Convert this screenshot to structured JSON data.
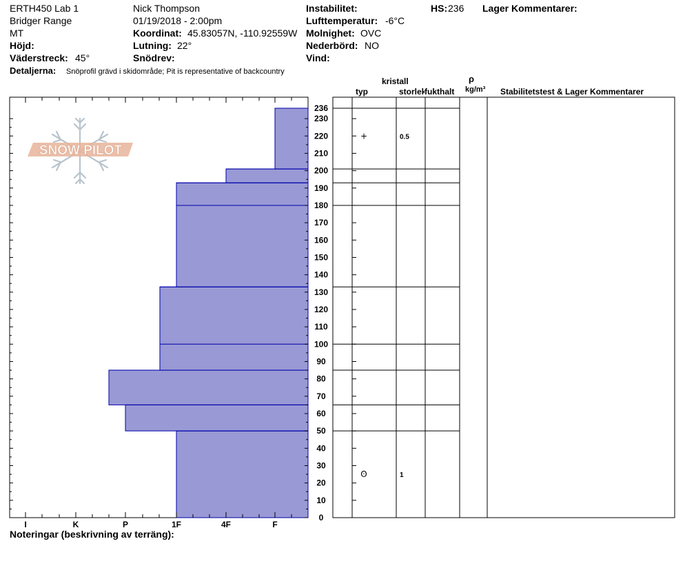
{
  "header": {
    "title": "ERTH450 Lab 1",
    "range": "Bridger Range",
    "state": "MT",
    "observer": "Nick Thompson",
    "datetime": "01/19/2018 - 2:00pm",
    "coord_label": "Koordinat:",
    "coord_value": "45.83057N, -110.92559W",
    "slope_label": "Lutning:",
    "slope_value": "22°",
    "snowdrift_label": "Snödrev:",
    "snowdrift_value": "",
    "elevation_label": "Höjd:",
    "elevation_value": "",
    "aspect_label": "Väderstreck:",
    "aspect_value": "45°",
    "instability_label": "Instabilitet:",
    "instability_value": "",
    "airtemp_label": "Lufttemperatur:",
    "airtemp_value": "-6°C",
    "sky_label": "Molnighet:",
    "sky_value": "OVC",
    "precip_label": "Nederbörd:",
    "precip_value": "NO",
    "wind_label": "Vind:",
    "wind_value": "",
    "hs_label": "HS:",
    "hs_value": "236",
    "layer_comments_label": "Lager Kommentarer:",
    "details_label": "Detaljerna:",
    "details_value": "Snöprofil grävd i skidområde;  Pit is representative of backcountry"
  },
  "logo": {
    "text": "SNOW PILOT"
  },
  "table_headers": {
    "crystal": "kristall",
    "type": "typ",
    "size": "storlek",
    "moisture": "fukthalt",
    "rho": "ρ",
    "density_unit": "kg/m³",
    "stability": "Stabilitetstest & Lager Kommentarer"
  },
  "footer": {
    "notes_label": "Noteringar (beskrivning av terräng):"
  },
  "chart_data": {
    "type": "bar",
    "orientation": "horizontal",
    "hardness_scale": [
      "I",
      "K",
      "P",
      "1F",
      "4F",
      "F"
    ],
    "hardness_scale_direction": "right-to-left",
    "y_axis_label": "",
    "ylim": [
      0,
      236
    ],
    "y_ticks": [
      0,
      10,
      20,
      30,
      40,
      50,
      60,
      70,
      80,
      90,
      100,
      110,
      120,
      130,
      140,
      150,
      160,
      170,
      180,
      190,
      200,
      210,
      220,
      230,
      236
    ],
    "fill_color": "#9999d6",
    "line_color": "#0000aa",
    "layers": [
      {
        "bottom": 0,
        "top": 50,
        "hardness": "1F"
      },
      {
        "bottom": 50,
        "top": 65,
        "hardness": "P"
      },
      {
        "bottom": 65,
        "top": 85,
        "hardness": "P+"
      },
      {
        "bottom": 85,
        "top": 133,
        "hardness": "1F+"
      },
      {
        "bottom": 133,
        "top": 193,
        "hardness": "1F"
      },
      {
        "bottom": 193,
        "top": 201,
        "hardness": "4F"
      },
      {
        "bottom": 201,
        "top": 236,
        "hardness": "F"
      }
    ],
    "layer_lines": [
      0,
      50,
      65,
      85,
      100,
      133,
      180,
      193,
      201,
      236
    ],
    "crystals": [
      {
        "height": 220,
        "type_symbol": "+",
        "size": "0.5"
      },
      {
        "height": 25,
        "type_symbol": "ʘ",
        "size": "1"
      }
    ]
  }
}
